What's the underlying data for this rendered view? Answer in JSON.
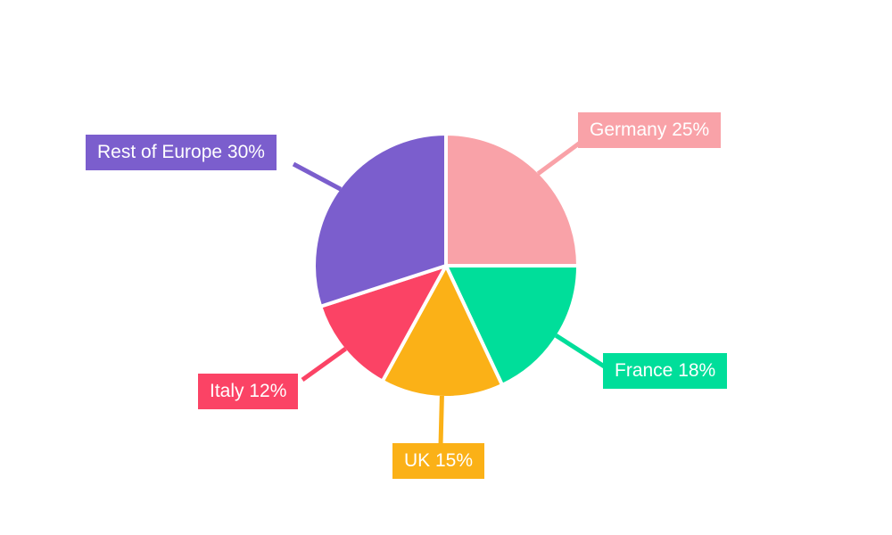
{
  "chart_data": {
    "type": "pie",
    "title": "",
    "unit": "%",
    "total": 100,
    "direction": "clockwise",
    "start_angle_deg": 0,
    "legend_position": "outside-callouts",
    "background_color": "#FFFFFF",
    "label_text_color": "#FFFFFF",
    "slices": [
      {
        "label": "Germany",
        "value": 25,
        "display": "Germany 25%",
        "color": "#F9A2A8"
      },
      {
        "label": "France",
        "value": 18,
        "display": "France 18%",
        "color": "#00DE9A"
      },
      {
        "label": "UK",
        "value": 15,
        "display": "UK 15%",
        "color": "#FBB117"
      },
      {
        "label": "Italy",
        "value": 12,
        "display": "Italy 12%",
        "color": "#FB4365"
      },
      {
        "label": "Rest of Europe",
        "value": 30,
        "display": "Rest of Europe 30%",
        "color": "#7B5ECD"
      }
    ]
  }
}
